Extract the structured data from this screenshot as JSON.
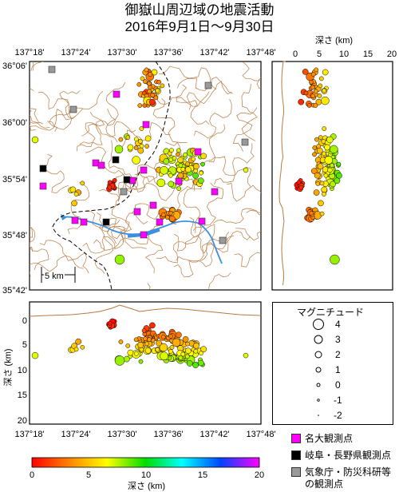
{
  "title": {
    "line1": "御嶽山周辺域の地震活動",
    "line2": "2016年9月1日～9月30日"
  },
  "map": {
    "lon_ticks": [
      "137°18'",
      "137°24'",
      "137°30'",
      "137°36'",
      "137°42'",
      "137°48'"
    ],
    "lat_ticks": [
      "36°06'",
      "36°00'",
      "35°54'",
      "35°48'",
      "35°42'"
    ],
    "scale_label": "5 km"
  },
  "depth_section": {
    "label": "深さ (km)",
    "ticks": [
      "0",
      "5",
      "10",
      "15",
      "20"
    ]
  },
  "cross_section": {
    "ylabel": "深さ (km)",
    "yticks": [
      "0",
      "5",
      "10",
      "15",
      "20"
    ],
    "xticks": [
      "137°18'",
      "137°24'",
      "137°30'",
      "137°36'",
      "137°42'",
      "137°48'"
    ]
  },
  "magnitude_legend": {
    "title": "マグニチュード",
    "levels": [
      "4",
      "3",
      "2",
      "1",
      "0",
      "-1",
      "-2"
    ]
  },
  "stations": {
    "nagoya": {
      "label": "名大観測点",
      "color": "#ff00ff"
    },
    "gifu_nagano": {
      "label": "岐阜・長野県観測点",
      "color": "#000000"
    },
    "jma": {
      "label": "気象庁・防災科研等",
      "label2": "の観測点",
      "color": "#999999"
    }
  },
  "colorbar": {
    "label": "深さ (km)",
    "ticks": [
      "0",
      "5",
      "10",
      "15",
      "20"
    ],
    "colors": [
      "#ff0000",
      "#ff8800",
      "#ffff00",
      "#00dd00",
      "#00ffff",
      "#0044ff",
      "#ff00ff"
    ]
  },
  "chart_data": {
    "type": "scatter",
    "x_range_lon": [
      "137°18'",
      "137°48'"
    ],
    "y_range_lat": [
      "35°42'",
      "36°06'"
    ],
    "depth_range_km": [
      0,
      20
    ],
    "color_encodes": "depth (km)",
    "size_encodes": "magnitude"
  }
}
